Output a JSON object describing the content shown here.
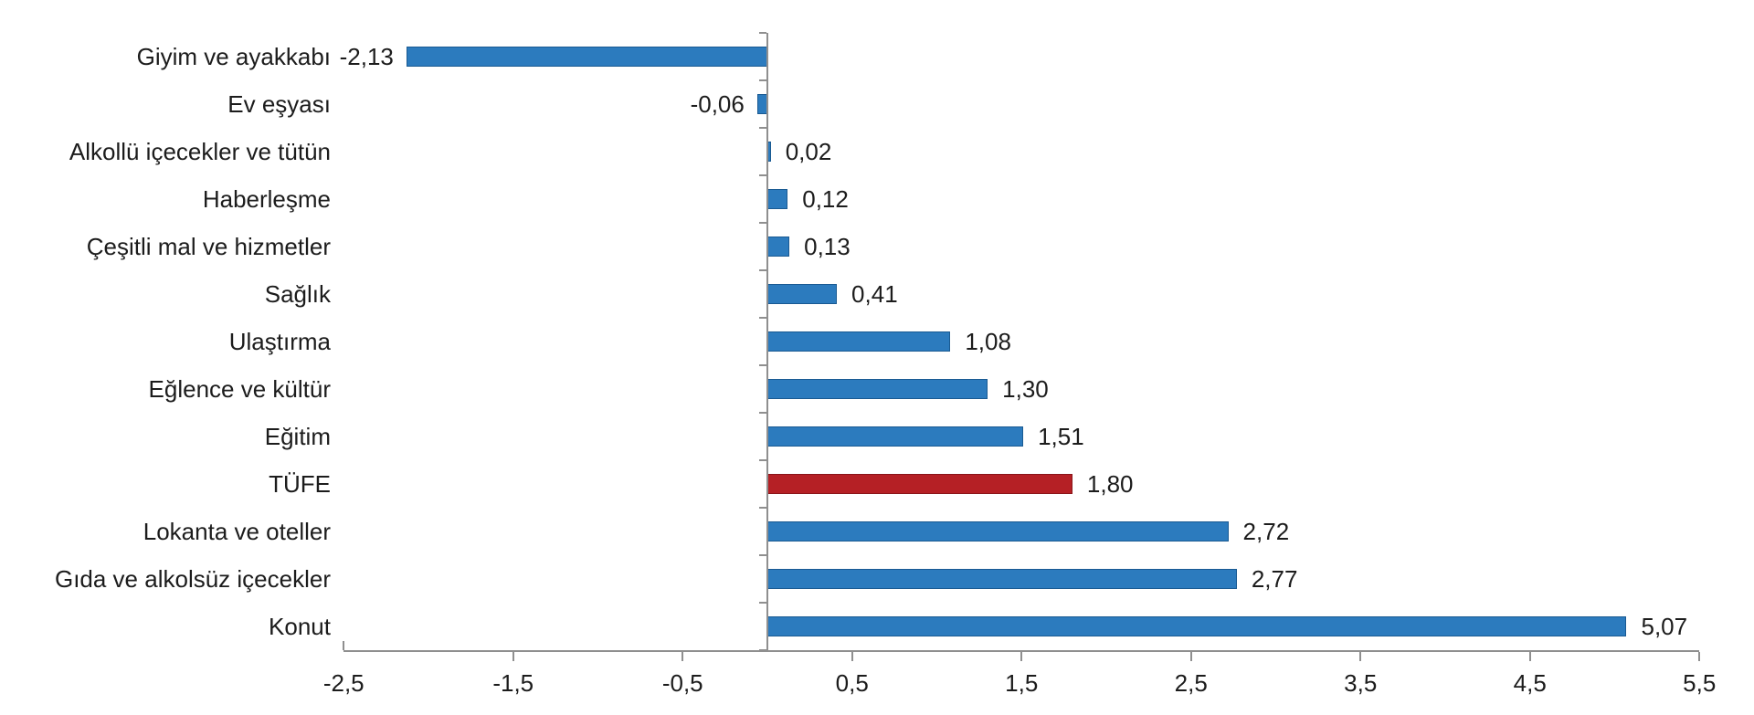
{
  "chart_data": {
    "type": "bar",
    "orientation": "horizontal",
    "title": "",
    "categories": [
      "Giyim ve ayakkabı",
      "Ev eşyası",
      "Alkollü içecekler ve tütün",
      "Haberleşme",
      "Çeşitli mal ve hizmetler",
      "Sağlık",
      "Ulaştırma",
      "Eğlence ve kültür",
      "Eğitim",
      "TÜFE",
      "Lokanta ve oteller",
      "Gıda ve alkolsüz içecekler",
      "Konut"
    ],
    "values": [
      -2.13,
      -0.06,
      0.02,
      0.12,
      0.13,
      0.41,
      1.08,
      1.3,
      1.51,
      1.8,
      2.72,
      2.77,
      5.07
    ],
    "value_labels": [
      "-2,13",
      "-0,06",
      "0,02",
      "0,12",
      "0,13",
      "0,41",
      "1,08",
      "1,30",
      "1,51",
      "1,80",
      "2,72",
      "2,77",
      "5,07"
    ],
    "highlight_category": "TÜFE",
    "highlight_index": 9,
    "xlim": [
      -2.5,
      5.5
    ],
    "x_ticks": [
      -2.5,
      -1.5,
      -0.5,
      0.5,
      1.5,
      2.5,
      3.5,
      4.5,
      5.5
    ],
    "x_tick_labels": [
      "-2,5",
      "-1,5",
      "-0,5",
      "0,5",
      "1,5",
      "2,5",
      "3,5",
      "4,5",
      "5,5"
    ],
    "grid": false,
    "legend": false,
    "decimal_separator": ",",
    "colors": {
      "bar": "#2C7BBE",
      "bar_border": "#1A5A92",
      "highlight": "#B52025",
      "highlight_border": "#8A1519",
      "axis": "#8F8F8F",
      "text": "#1C1C1C",
      "background": "#FFFFFF"
    }
  }
}
